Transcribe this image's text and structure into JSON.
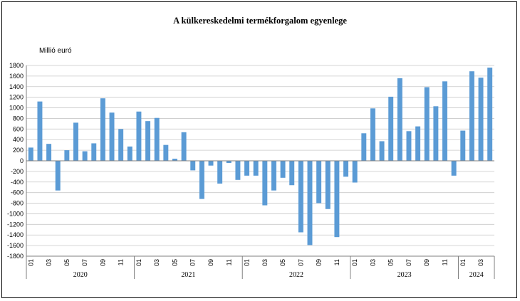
{
  "chart_data": {
    "type": "bar",
    "title": "A külkereskedelmi termékforgalom egyenlege",
    "ylabel": "Millió euró",
    "ylim": [
      -1800,
      1800
    ],
    "ytick_step": 200,
    "grid": true,
    "bar_color": "#5b9bd5",
    "month_tick_labels": [
      "01",
      "03",
      "05",
      "07",
      "09",
      "11"
    ],
    "years": [
      {
        "label": "2020",
        "months": 12
      },
      {
        "label": "2021",
        "months": 12
      },
      {
        "label": "2022",
        "months": 12
      },
      {
        "label": "2023",
        "months": 12
      },
      {
        "label": "2024",
        "months": 4
      }
    ],
    "values": [
      250,
      1120,
      320,
      -560,
      200,
      720,
      180,
      330,
      1180,
      910,
      600,
      270,
      930,
      750,
      810,
      300,
      40,
      540,
      -180,
      -720,
      -90,
      -430,
      -40,
      -360,
      -280,
      -280,
      -840,
      -560,
      -320,
      -460,
      -1350,
      -1590,
      -800,
      -910,
      -1440,
      -300,
      -410,
      520,
      990,
      370,
      1210,
      1560,
      560,
      650,
      1390,
      1030,
      1500,
      -280,
      570,
      1690,
      1570,
      1760
    ]
  }
}
